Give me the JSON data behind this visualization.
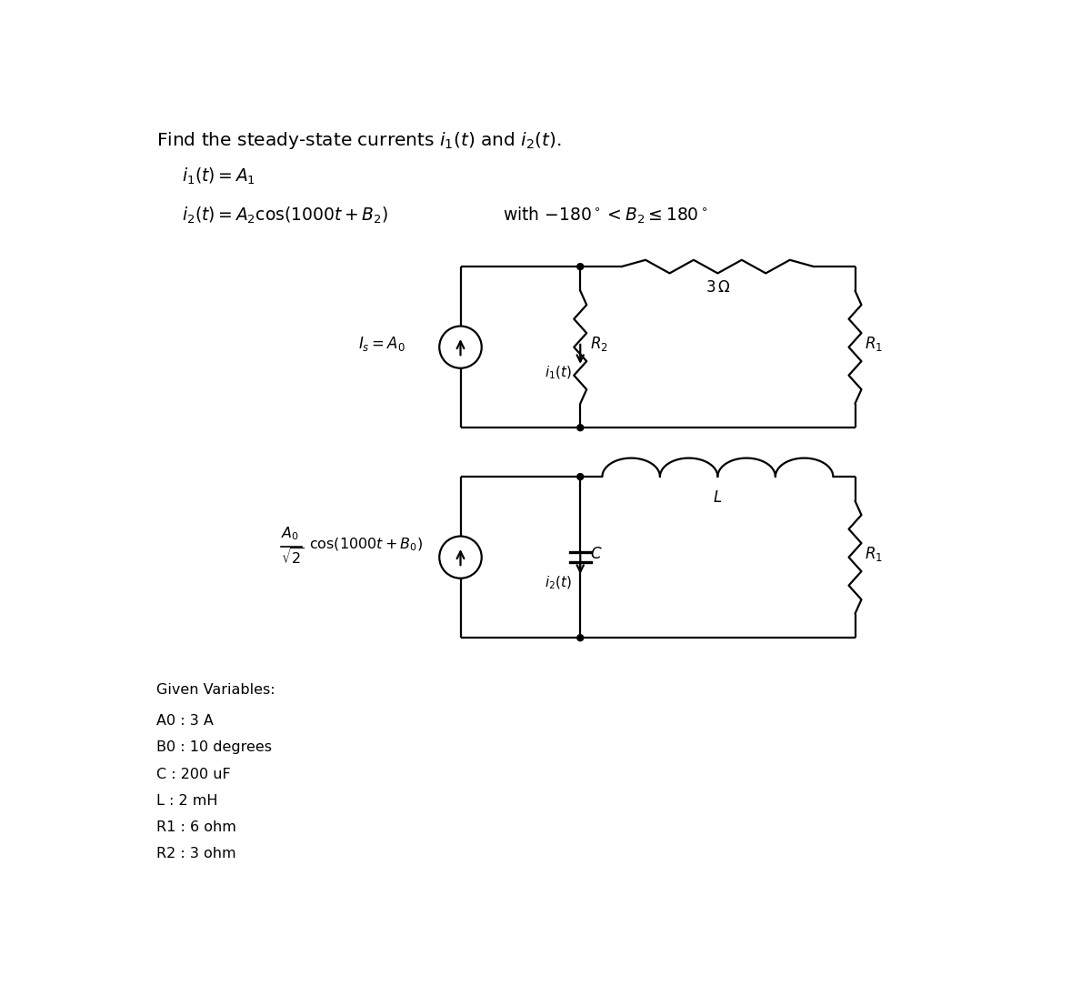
{
  "title_text": "Find the steady-state currents $i_1(t)$ and $i_2(t)$.",
  "eq1": "$i_1(t) = A_1$",
  "eq2": "$i_2(t) = A_2\\cos(1000t + B_2)$",
  "eq2_constraint": "with $-180^\\circ < B_2 \\leq 180^\\circ$",
  "source1_label": "$I_s = A_0$",
  "source2_label_num": "$A_0$",
  "source2_label_den": "$\\sqrt{2}$",
  "source2_label_rest": "$\\cos(1000t + B_0)$",
  "i1_label": "$i_1(t)$",
  "i2_label": "$i_2(t)$",
  "R2_vert_label": "$R_2$",
  "R2_horiz_value": "$3\\,\\Omega$",
  "R1_label_c1": "$R_1$",
  "R1_label_c2": "$R_1$",
  "L_label": "$L$",
  "C_label": "$C$",
  "given_header": "Given Variables:",
  "given_lines": [
    "A0 : 3 A",
    "B0 : 10 degrees",
    "C : 200 uF",
    "L : 2 mH",
    "R1 : 6 ohm",
    "R2 : 3 ohm"
  ],
  "bg_color": "#ffffff",
  "lc": "#000000"
}
